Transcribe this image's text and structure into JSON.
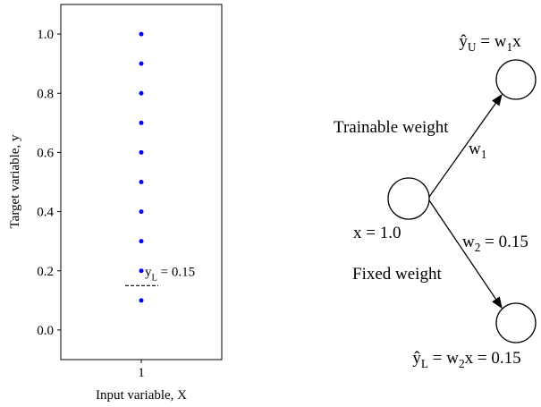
{
  "chart_data": {
    "type": "scatter",
    "x": [
      1,
      1,
      1,
      1,
      1,
      1,
      1,
      1,
      1,
      1
    ],
    "values": [
      0.1,
      0.2,
      0.3,
      0.4,
      0.5,
      0.6,
      0.7,
      0.8,
      0.9,
      1.0
    ],
    "color": "#0000ee",
    "xlabel": "Input variable, X",
    "ylabel": "Target variable, y",
    "xlim": [
      0.5,
      1.5
    ],
    "ylim": [
      -0.1,
      1.1
    ],
    "xticks": [
      1
    ],
    "yticks": [
      {
        "value": 0,
        "label": "0.0"
      },
      0.2,
      0.4,
      0.6,
      0.8,
      {
        "value": 1,
        "label": "1.0"
      }
    ],
    "grid": false,
    "annotation": {
      "parts": [
        "y",
        "L",
        " = 0.15"
      ],
      "value": 0.15
    }
  },
  "diagram": {
    "output_upper": {
      "parts": [
        "ŷ",
        "U",
        " = w",
        "1",
        "x"
      ]
    },
    "output_lower": {
      "parts": [
        "ŷ",
        "L",
        " = w",
        "2",
        "x = 0.15"
      ]
    },
    "input": {
      "parts": [
        "x = 1.0"
      ]
    },
    "edge_upper": {
      "parts": [
        "w",
        "1"
      ],
      "note": "Trainable weight"
    },
    "edge_lower": {
      "parts": [
        "w",
        "2",
        " = 0.15"
      ],
      "note": "Fixed weight"
    }
  }
}
